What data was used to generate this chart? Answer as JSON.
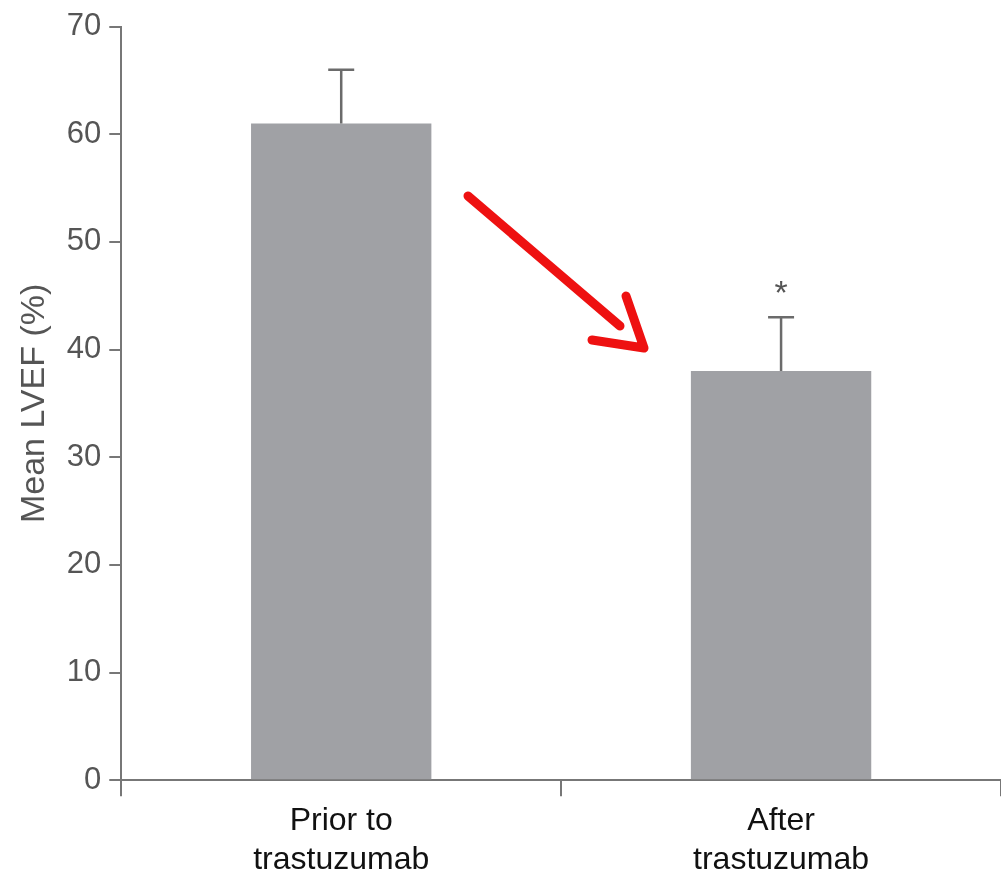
{
  "chart_data": {
    "type": "bar",
    "ylabel": "Mean LVEF (%)",
    "categories": [
      "Prior to trastuzumab",
      "After trastuzumab"
    ],
    "values": [
      61,
      38
    ],
    "color": "#a0a1a5",
    "errors": [
      [
        61,
        66
      ],
      [
        38,
        43
      ]
    ],
    "ylim": [
      0,
      70
    ],
    "yticks": [
      0,
      10,
      20,
      30,
      40,
      50,
      60,
      70
    ],
    "grid": false,
    "legend": false,
    "annotations": [
      {
        "text": "*",
        "x": "After trastuzumab",
        "y": 43
      }
    ]
  }
}
